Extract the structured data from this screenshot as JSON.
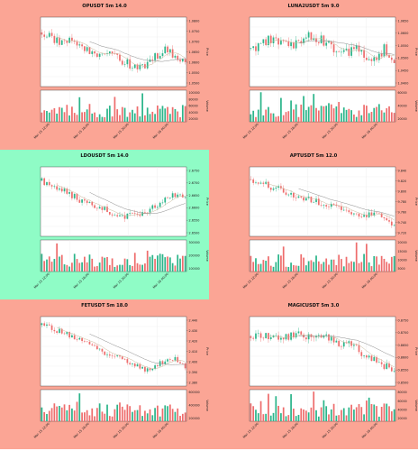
{
  "colors": {
    "salmon_bg": "#fba595",
    "mint_bg": "#8ffcc6",
    "up": "#2cb58a",
    "down": "#ee6d6d",
    "ma_fast": "#c8b89a",
    "ma_slow": "#8a8a8a"
  },
  "chart_data": [
    {
      "type": "candlestick",
      "title": "OPUSDT 5m 14.0",
      "background": "salmon",
      "ylabel": "Price",
      "volume_label": "Volume",
      "price_ticks": [
        "1.0800",
        "1.0750",
        "1.0700",
        "1.0650",
        "1.0600",
        "1.0550",
        "1.0500"
      ],
      "volume_ticks": [
        "100000",
        "80000",
        "60000",
        "40000",
        "20000"
      ],
      "x_ticks": [
        "Mar 15 12:00",
        "Mar 15 16:00",
        "Mar 15 20:00",
        "Mar 16 00:00"
      ],
      "trend": [
        0.78,
        0.7,
        0.62,
        0.66,
        0.55,
        0.5,
        0.44,
        0.46,
        0.4,
        0.33,
        0.25,
        0.3,
        0.45,
        0.55,
        0.4,
        0.32
      ],
      "noise": 0.06,
      "seed": 3
    },
    {
      "type": "candlestick",
      "title": "LUNA2USDT 5m 9.0",
      "background": "salmon",
      "ylabel": "Price",
      "volume_label": "Volume",
      "price_ticks": [
        "1.0650",
        "1.0600",
        "1.0550",
        "1.0500",
        "1.0450",
        "1.0400"
      ],
      "volume_ticks": [
        "60000",
        "40000",
        "20000"
      ],
      "x_ticks": [
        "Mar 15 12:00",
        "Mar 15 16:00",
        "Mar 15 20:00",
        "Mar 16 00:00"
      ],
      "trend": [
        0.55,
        0.6,
        0.68,
        0.62,
        0.58,
        0.65,
        0.75,
        0.7,
        0.62,
        0.5,
        0.48,
        0.6,
        0.45,
        0.38,
        0.55,
        0.4
      ],
      "noise": 0.07,
      "seed": 7
    },
    {
      "type": "candlestick",
      "title": "LDOUSDT 5m 14.0",
      "background": "mint",
      "ylabel": "Price",
      "volume_label": "Volume",
      "price_ticks": [
        "2.6750",
        "2.6700",
        "2.6650",
        "2.6600",
        "2.6550",
        "2.6500"
      ],
      "volume_ticks": [
        "300000",
        "200000",
        "100000"
      ],
      "x_ticks": [
        "Mar 15 12:00",
        "Mar 15 16:00",
        "Mar 15 20:00",
        "Mar 16 00:00"
      ],
      "trend": [
        0.8,
        0.72,
        0.66,
        0.6,
        0.52,
        0.46,
        0.4,
        0.36,
        0.32,
        0.28,
        0.32,
        0.38,
        0.45,
        0.55,
        0.6,
        0.58
      ],
      "noise": 0.05,
      "seed": 11
    },
    {
      "type": "candlestick",
      "title": "APTUSDT 5m 12.0",
      "background": "salmon",
      "ylabel": "Price",
      "volume_label": "Volume",
      "price_ticks": [
        "9.840",
        "9.820",
        "9.800",
        "9.780",
        "9.760",
        "9.740",
        "9.720"
      ],
      "volume_ticks": [
        "20000",
        "15000",
        "10000",
        "5000"
      ],
      "x_ticks": [
        "Mar 15 12:00",
        "Mar 15 16:00",
        "Mar 15 20:00",
        "Mar 16 00:00"
      ],
      "trend": [
        0.82,
        0.8,
        0.72,
        0.7,
        0.62,
        0.58,
        0.55,
        0.48,
        0.44,
        0.4,
        0.38,
        0.35,
        0.3,
        0.34,
        0.25,
        0.12
      ],
      "noise": 0.05,
      "seed": 19
    },
    {
      "type": "candlestick",
      "title": "FETUSDT 5m 18.0",
      "background": "salmon",
      "ylabel": "Price",
      "volume_label": "Volume",
      "price_ticks": [
        "2.440",
        "2.430",
        "2.420",
        "2.410",
        "2.400",
        "2.390",
        "2.380"
      ],
      "volume_ticks": [
        "600000",
        "400000",
        "200000"
      ],
      "x_ticks": [
        "Mar 15 12:00",
        "Mar 15 16:00",
        "Mar 15 20:00",
        "Mar 16 00:00"
      ],
      "trend": [
        0.88,
        0.84,
        0.78,
        0.72,
        0.66,
        0.58,
        0.52,
        0.46,
        0.4,
        0.34,
        0.28,
        0.22,
        0.3,
        0.36,
        0.4,
        0.28
      ],
      "noise": 0.04,
      "seed": 23
    },
    {
      "type": "candlestick",
      "title": "MAGICUSDT 5m 3.0",
      "background": "salmon",
      "ylabel": "Price",
      "volume_label": "Volume",
      "price_ticks": [
        "0.8750",
        "0.8700",
        "0.8650",
        "0.8600",
        "0.8550",
        "0.8500"
      ],
      "volume_ticks": [
        "80000",
        "60000",
        "40000",
        "20000"
      ],
      "x_ticks": [
        "Mar 15 12:00",
        "Mar 15 16:00",
        "Mar 15 20:00",
        "Mar 16 00:00"
      ],
      "trend": [
        0.72,
        0.7,
        0.74,
        0.68,
        0.7,
        0.76,
        0.72,
        0.68,
        0.7,
        0.64,
        0.6,
        0.56,
        0.44,
        0.36,
        0.3,
        0.2
      ],
      "noise": 0.06,
      "seed": 29
    }
  ]
}
